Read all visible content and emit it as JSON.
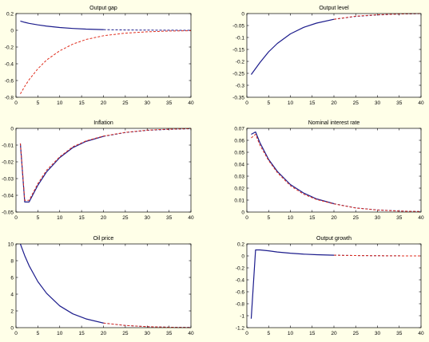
{
  "colors": {
    "background": "#ffffe8",
    "axes_bg": "#ffffff",
    "solid": "#1c1c8c",
    "dashed": "#e03020"
  },
  "chart_data": [
    {
      "type": "line",
      "title": "Output gap",
      "xlim": [
        0,
        40
      ],
      "ylim": [
        -0.8,
        0.2
      ],
      "xticks": [
        0,
        5,
        10,
        15,
        20,
        25,
        30,
        35,
        40
      ],
      "yticks": [
        -0.8,
        -0.6,
        -0.4,
        -0.2,
        0,
        0.2
      ],
      "yticklabels": [
        "-0.8",
        "-0.6",
        "-0.4",
        "-0.2",
        "0",
        "0.2"
      ],
      "series": [
        {
          "style": "solid",
          "color": "#1c1c8c",
          "x": [
            1,
            2,
            3,
            5,
            7,
            10,
            13,
            16,
            20
          ],
          "y": [
            0.11,
            0.095,
            0.083,
            0.065,
            0.05,
            0.033,
            0.022,
            0.014,
            0.008
          ]
        },
        {
          "style": "solid-dashed",
          "color": "#1c1c8c",
          "x": [
            20,
            25,
            30,
            35,
            40
          ],
          "y": [
            0.008,
            0.004,
            0.002,
            0.001,
            0.0
          ]
        },
        {
          "style": "dashed",
          "color": "#e03020",
          "x": [
            1,
            2,
            3,
            5,
            7,
            10,
            13,
            16,
            20,
            25,
            30,
            35,
            40
          ],
          "y": [
            -0.76,
            -0.67,
            -0.59,
            -0.46,
            -0.355,
            -0.245,
            -0.165,
            -0.11,
            -0.065,
            -0.034,
            -0.018,
            -0.009,
            -0.005
          ]
        }
      ]
    },
    {
      "type": "line",
      "title": "Output level",
      "xlim": [
        0,
        40
      ],
      "ylim": [
        -0.35,
        0
      ],
      "xticks": [
        0,
        5,
        10,
        15,
        20,
        25,
        30,
        35,
        40
      ],
      "yticks": [
        -0.35,
        -0.3,
        -0.25,
        -0.2,
        -0.15,
        -0.1,
        -0.05,
        0
      ],
      "yticklabels": [
        "-0.35",
        "-0.3",
        "-0.25",
        "-0.2",
        "-0.15",
        "-0.1",
        "-0.05",
        "0"
      ],
      "series": [
        {
          "style": "solid",
          "color": "#1c1c8c",
          "x": [
            1,
            2,
            3,
            5,
            7,
            10,
            13,
            16,
            20
          ],
          "y": [
            -0.255,
            -0.23,
            -0.205,
            -0.16,
            -0.125,
            -0.085,
            -0.058,
            -0.04,
            -0.024
          ]
        },
        {
          "style": "solid-dashed",
          "color": "#1c1c8c",
          "x": [
            20,
            25,
            30,
            35,
            40
          ],
          "y": [
            -0.024,
            -0.012,
            -0.006,
            -0.002,
            0.0
          ]
        },
        {
          "style": "dashed",
          "color": "#e03020",
          "x": [
            20,
            25,
            30,
            35,
            40
          ],
          "y": [
            -0.024,
            -0.011,
            -0.005,
            -0.002,
            0.0
          ]
        }
      ]
    },
    {
      "type": "line",
      "title": "Inflation",
      "xlim": [
        0,
        40
      ],
      "ylim": [
        -0.05,
        0
      ],
      "xticks": [
        0,
        5,
        10,
        15,
        20,
        25,
        30,
        35,
        40
      ],
      "yticks": [
        -0.05,
        -0.04,
        -0.03,
        -0.02,
        -0.01,
        0
      ],
      "yticklabels": [
        "-0.05",
        "-0.04",
        "-0.03",
        "-0.02",
        "-0.01",
        "0"
      ],
      "series": [
        {
          "style": "solid",
          "color": "#1c1c8c",
          "x": [
            1,
            2,
            3,
            5,
            7,
            10,
            13,
            16,
            20
          ],
          "y": [
            -0.009,
            -0.044,
            -0.044,
            -0.034,
            -0.026,
            -0.0175,
            -0.0115,
            -0.0078,
            -0.0048
          ]
        },
        {
          "style": "solid-dashed",
          "color": "#1c1c8c",
          "x": [
            20,
            25,
            30,
            35,
            40
          ],
          "y": [
            -0.0048,
            -0.0025,
            -0.0012,
            -0.0006,
            -0.0002
          ]
        },
        {
          "style": "dashed",
          "color": "#e03020",
          "x": [
            1,
            2,
            3,
            5,
            7,
            10,
            13,
            16,
            20,
            25,
            30,
            35,
            40
          ],
          "y": [
            -0.009,
            -0.043,
            -0.043,
            -0.033,
            -0.025,
            -0.017,
            -0.011,
            -0.0075,
            -0.0046,
            -0.0024,
            -0.0011,
            -0.0005,
            -0.0002
          ]
        }
      ]
    },
    {
      "type": "line",
      "title": "Nominal interest rate",
      "xlim": [
        0,
        40
      ],
      "ylim": [
        0,
        0.07
      ],
      "xticks": [
        0,
        5,
        10,
        15,
        20,
        25,
        30,
        35,
        40
      ],
      "yticks": [
        0,
        0.01,
        0.02,
        0.03,
        0.04,
        0.05,
        0.06,
        0.07
      ],
      "yticklabels": [
        "0",
        "0.01",
        "0.02",
        "0.03",
        "0.04",
        "0.05",
        "0.06",
        "0.07"
      ],
      "series": [
        {
          "style": "solid",
          "color": "#1c1c8c",
          "x": [
            1,
            2,
            3,
            5,
            7,
            10,
            13,
            16,
            20
          ],
          "y": [
            0.065,
            0.067,
            0.058,
            0.044,
            0.034,
            0.023,
            0.016,
            0.011,
            0.007
          ]
        },
        {
          "style": "solid-dashed",
          "color": "#1c1c8c",
          "x": [
            20,
            25,
            30,
            35,
            40
          ],
          "y": [
            0.007,
            0.0035,
            0.0018,
            0.0009,
            0.0004
          ]
        },
        {
          "style": "dashed",
          "color": "#e03020",
          "x": [
            1,
            2,
            3,
            5,
            7,
            10,
            13,
            16,
            20,
            25,
            30,
            35,
            40
          ],
          "y": [
            0.062,
            0.065,
            0.056,
            0.043,
            0.033,
            0.022,
            0.015,
            0.0105,
            0.0068,
            0.0034,
            0.0017,
            0.0008,
            0.0004
          ]
        }
      ]
    },
    {
      "type": "line",
      "title": "Oil price",
      "xlim": [
        0,
        40
      ],
      "ylim": [
        0,
        10
      ],
      "xticks": [
        0,
        5,
        10,
        15,
        20,
        25,
        30,
        35,
        40
      ],
      "yticks": [
        0,
        2,
        4,
        6,
        8,
        10
      ],
      "yticklabels": [
        "0",
        "2",
        "4",
        "6",
        "8",
        "10"
      ],
      "series": [
        {
          "style": "solid",
          "color": "#1c1c8c",
          "x": [
            1,
            2,
            3,
            5,
            7,
            10,
            13,
            16,
            20
          ],
          "y": [
            10,
            8.6,
            7.4,
            5.5,
            4.1,
            2.6,
            1.65,
            1.05,
            0.55
          ]
        },
        {
          "style": "solid-dashed",
          "color": "#1c1c8c",
          "x": [
            20,
            25,
            30,
            35,
            40
          ],
          "y": [
            0.55,
            0.26,
            0.12,
            0.05,
            0.02
          ]
        },
        {
          "style": "dashed",
          "color": "#e03020",
          "x": [
            20,
            25,
            30,
            35,
            40
          ],
          "y": [
            0.55,
            0.26,
            0.12,
            0.05,
            0.02
          ]
        }
      ]
    },
    {
      "type": "line",
      "title": "Output growth",
      "xlim": [
        0,
        40
      ],
      "ylim": [
        -1.2,
        0.2
      ],
      "xticks": [
        0,
        5,
        10,
        15,
        20,
        25,
        30,
        35,
        40
      ],
      "yticks": [
        -1.2,
        -1,
        -0.8,
        -0.6,
        -0.4,
        -0.2,
        0,
        0.2
      ],
      "yticklabels": [
        "-1.2",
        "-1",
        "-0.8",
        "-0.6",
        "-0.4",
        "-0.2",
        "0",
        "0.2"
      ],
      "series": [
        {
          "style": "solid",
          "color": "#1c1c8c",
          "x": [
            1,
            2,
            3,
            5,
            7,
            10,
            13,
            16,
            20
          ],
          "y": [
            -1.05,
            0.1,
            0.1,
            0.085,
            0.065,
            0.045,
            0.03,
            0.02,
            0.012
          ]
        },
        {
          "style": "solid-dashed",
          "color": "#1c1c8c",
          "x": [
            20,
            25,
            30,
            35,
            40
          ],
          "y": [
            0.012,
            0.006,
            0.003,
            0.001,
            0.0
          ]
        },
        {
          "style": "dashed",
          "color": "#e03020",
          "x": [
            20,
            25,
            30,
            35,
            40
          ],
          "y": [
            0.012,
            0.006,
            0.003,
            0.001,
            0.0
          ]
        }
      ]
    }
  ]
}
